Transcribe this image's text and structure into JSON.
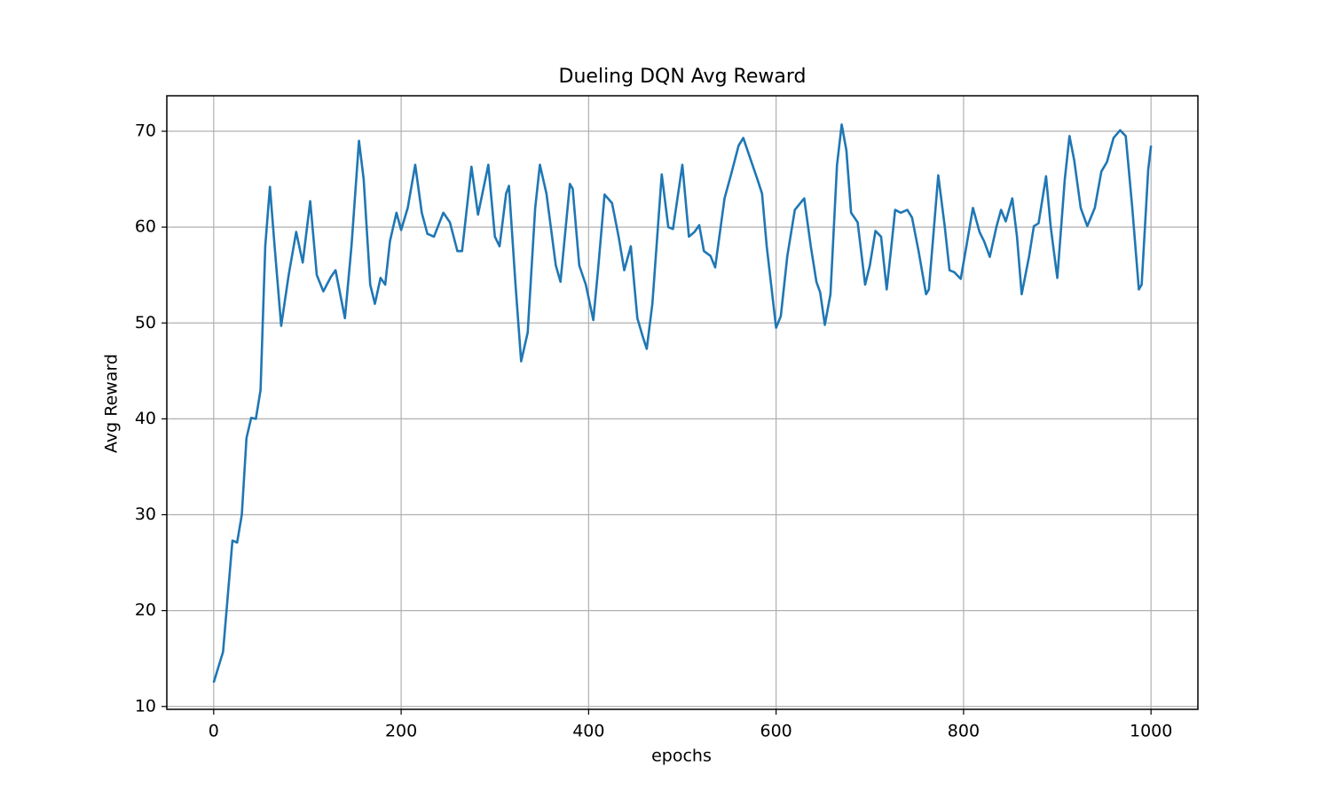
{
  "chart_data": {
    "type": "line",
    "title": "Dueling DQN Avg Reward",
    "x_label": "epochs",
    "y_label": "Avg Reward",
    "x": [
      0,
      10,
      20,
      25,
      30,
      35,
      40,
      45,
      50,
      55,
      60,
      65,
      72,
      80,
      88,
      95,
      103,
      110,
      117,
      125,
      130,
      135,
      140,
      147,
      155,
      160,
      167,
      172,
      178,
      183,
      188,
      195,
      200,
      207,
      215,
      222,
      228,
      235,
      245,
      252,
      260,
      265,
      275,
      282,
      293,
      300,
      305,
      312,
      315,
      322,
      328,
      335,
      343,
      348,
      355,
      365,
      370,
      380,
      383,
      390,
      397,
      405,
      410,
      417,
      425,
      432,
      438,
      445,
      452,
      458,
      462,
      468,
      478,
      485,
      490,
      500,
      507,
      513,
      518,
      523,
      530,
      535,
      545,
      552,
      560,
      565,
      573,
      580,
      585,
      590,
      600,
      605,
      612,
      620,
      630,
      637,
      643,
      647,
      652,
      658,
      665,
      670,
      675,
      680,
      687,
      695,
      700,
      706,
      712,
      718,
      723,
      727,
      733,
      740,
      745,
      752,
      760,
      763,
      773,
      780,
      785,
      790,
      797,
      803,
      810,
      817,
      822,
      828,
      835,
      840,
      845,
      852,
      857,
      862,
      870,
      875,
      880,
      888,
      893,
      900,
      908,
      913,
      918,
      925,
      932,
      940,
      947,
      953,
      960,
      967,
      973,
      980,
      987,
      990,
      997,
      1000
    ],
    "series": [
      {
        "name": "Avg Reward",
        "color": "#1f77b4",
        "values": [
          12.5,
          15.7,
          27.3,
          27.1,
          30,
          38,
          40.1,
          40,
          43,
          58,
          64.2,
          58,
          49.7,
          55,
          59.5,
          56.3,
          62.7,
          55,
          53.3,
          54.8,
          55.5,
          53,
          50.5,
          58,
          69,
          65,
          54,
          52,
          54.7,
          54,
          58.5,
          61.5,
          59.7,
          62,
          66.5,
          61.5,
          59.3,
          59,
          61.5,
          60.5,
          57.5,
          57.5,
          66.3,
          61.3,
          66.5,
          59,
          58,
          63.5,
          64.3,
          54,
          46,
          49,
          62,
          66.5,
          63.5,
          56,
          54.3,
          64.5,
          64,
          56,
          54,
          50.3,
          55.5,
          63.4,
          62.5,
          59,
          55.5,
          58,
          50.5,
          48.5,
          47.3,
          52,
          65.5,
          60,
          59.8,
          66.5,
          59,
          59.5,
          60.2,
          57.5,
          57,
          55.8,
          63,
          65.5,
          68.5,
          69.3,
          67,
          65,
          63.5,
          58,
          49.5,
          50.7,
          57,
          61.8,
          63,
          58,
          54.3,
          53.2,
          49.8,
          53,
          66.5,
          70.7,
          68,
          61.5,
          60.5,
          54,
          56,
          59.6,
          59,
          53.5,
          58,
          61.8,
          61.5,
          61.8,
          61,
          57.5,
          53,
          53.5,
          65.4,
          60,
          55.5,
          55.3,
          54.6,
          58,
          62,
          59.5,
          58.5,
          56.9,
          60,
          61.8,
          60.6,
          63,
          59,
          53,
          57,
          60.1,
          60.4,
          65.3,
          60,
          54.7,
          65,
          69.5,
          67,
          62,
          60.1,
          62,
          65.8,
          66.8,
          69.3,
          70.1,
          69.5,
          62,
          53.5,
          54,
          66,
          68.5
        ]
      }
    ],
    "xlim": [
      -50,
      1050
    ],
    "ylim": [
      9.7,
      73.7
    ],
    "xticks": [
      0,
      200,
      400,
      600,
      800,
      1000
    ],
    "yticks": [
      10,
      20,
      30,
      40,
      50,
      60,
      70
    ],
    "grid": true
  }
}
